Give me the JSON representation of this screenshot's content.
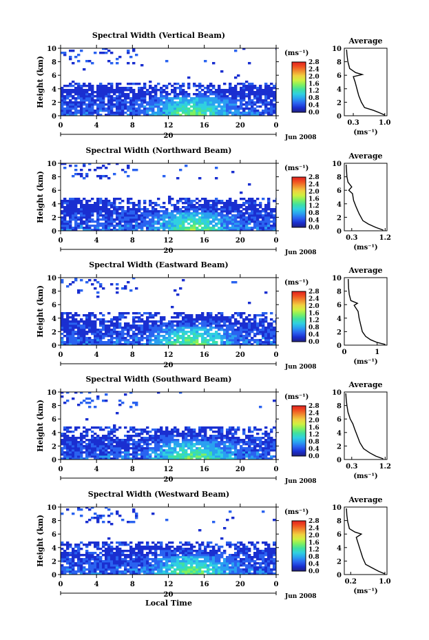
{
  "page": {
    "xlabel": "Local Time",
    "colorbar_unit": "(ms⁻¹)",
    "colorbar_ticks": [
      "0.0",
      "0.4",
      "0.8",
      "1.2",
      "1.6",
      "2.0",
      "2.4",
      "2.8"
    ],
    "date_label": "20",
    "month_label": "Jun 2008",
    "avg_xlabel": "(ms⁻¹)"
  },
  "palette": [
    "#202080",
    "#1a2fd0",
    "#2a63f0",
    "#2aa0f0",
    "#30d0e0",
    "#40e0a0",
    "#80f060",
    "#d0f040",
    "#f0d040",
    "#f09030",
    "#f05020",
    "#e02020"
  ],
  "chart_data": [
    {
      "type": "heatmap",
      "title": "Spectral Width (Vertical Beam)",
      "ylabel": "Height (km)",
      "x_ticks": [
        "0",
        "4",
        "8",
        "12",
        "16",
        "20",
        "0"
      ],
      "xlim": [
        0,
        24
      ],
      "y_ticks": [
        "0",
        "2",
        "4",
        "6",
        "8",
        "10"
      ],
      "ylim": [
        0,
        10
      ],
      "clim": [
        0,
        2.8
      ],
      "average_profile": {
        "title": "Average",
        "x_ticks": [
          "0.3",
          "1.0"
        ],
        "xlim": [
          0.1,
          1.05
        ],
        "y_ticks": [
          "0",
          "2",
          "4",
          "6",
          "8",
          "10"
        ],
        "ylim": [
          0,
          10
        ],
        "points": [
          [
            1.0,
            0.1
          ],
          [
            0.9,
            0.4
          ],
          [
            0.75,
            0.8
          ],
          [
            0.55,
            1.2
          ],
          [
            0.48,
            2.0
          ],
          [
            0.42,
            3.0
          ],
          [
            0.38,
            4.0
          ],
          [
            0.34,
            5.0
          ],
          [
            0.3,
            5.8
          ],
          [
            0.5,
            6.1
          ],
          [
            0.35,
            6.4
          ],
          [
            0.22,
            7.0
          ],
          [
            0.18,
            8.0
          ],
          [
            0.16,
            9.0
          ],
          [
            0.15,
            9.8
          ]
        ]
      }
    },
    {
      "type": "heatmap",
      "title": "Spectral Width (Northward Beam)",
      "ylabel": "Height (km)",
      "x_ticks": [
        "0",
        "4",
        "8",
        "12",
        "16",
        "20",
        "0"
      ],
      "xlim": [
        0,
        24
      ],
      "y_ticks": [
        "0",
        "2",
        "4",
        "6",
        "8",
        "10"
      ],
      "ylim": [
        0,
        10
      ],
      "clim": [
        0,
        2.8
      ],
      "average_profile": {
        "title": "Average",
        "x_ticks": [
          "0.3",
          "1.2"
        ],
        "xlim": [
          0.1,
          1.25
        ],
        "y_ticks": [
          "0",
          "2",
          "4",
          "6",
          "8",
          "10"
        ],
        "ylim": [
          0,
          10
        ],
        "points": [
          [
            1.15,
            0.1
          ],
          [
            0.95,
            0.5
          ],
          [
            0.75,
            1.0
          ],
          [
            0.6,
            1.5
          ],
          [
            0.5,
            2.5
          ],
          [
            0.42,
            3.5
          ],
          [
            0.35,
            4.5
          ],
          [
            0.32,
            5.5
          ],
          [
            0.22,
            6.0
          ],
          [
            0.3,
            6.5
          ],
          [
            0.2,
            7.2
          ],
          [
            0.17,
            8.0
          ],
          [
            0.16,
            9.0
          ],
          [
            0.15,
            9.8
          ]
        ]
      }
    },
    {
      "type": "heatmap",
      "title": "Spectral Width (Eastward Beam)",
      "ylabel": "Height (km)",
      "x_ticks": [
        "0",
        "4",
        "8",
        "12",
        "16",
        "20",
        "0"
      ],
      "xlim": [
        0,
        24
      ],
      "y_ticks": [
        "0",
        "2",
        "4",
        "6",
        "8",
        "10"
      ],
      "ylim": [
        0,
        10
      ],
      "clim": [
        0,
        2.8
      ],
      "average_profile": {
        "title": "Average",
        "x_ticks": [
          "0",
          "1"
        ],
        "xlim": [
          0,
          1.3
        ],
        "y_ticks": [
          "0",
          "2",
          "4",
          "6",
          "8",
          "10"
        ],
        "ylim": [
          0,
          10
        ],
        "points": [
          [
            1.25,
            0.1
          ],
          [
            1.0,
            0.4
          ],
          [
            0.8,
            0.8
          ],
          [
            0.65,
            1.3
          ],
          [
            0.55,
            2.0
          ],
          [
            0.5,
            3.0
          ],
          [
            0.45,
            4.0
          ],
          [
            0.42,
            5.0
          ],
          [
            0.3,
            5.9
          ],
          [
            0.4,
            6.2
          ],
          [
            0.2,
            6.6
          ],
          [
            0.15,
            7.5
          ],
          [
            0.13,
            8.5
          ],
          [
            0.12,
            9.8
          ]
        ]
      }
    },
    {
      "type": "heatmap",
      "title": "Spectral Width (Southward Beam)",
      "ylabel": "Height (km)",
      "x_ticks": [
        "0",
        "4",
        "8",
        "12",
        "16",
        "20",
        "0"
      ],
      "xlim": [
        0,
        24
      ],
      "y_ticks": [
        "0",
        "2",
        "4",
        "6",
        "8",
        "10"
      ],
      "ylim": [
        0,
        10
      ],
      "clim": [
        0,
        2.8
      ],
      "average_profile": {
        "title": "Average",
        "x_ticks": [
          "0.3",
          "1.2"
        ],
        "xlim": [
          0.1,
          1.25
        ],
        "y_ticks": [
          "0",
          "2",
          "4",
          "6",
          "8",
          "10"
        ],
        "ylim": [
          0,
          10
        ],
        "points": [
          [
            1.15,
            0.1
          ],
          [
            0.95,
            0.5
          ],
          [
            0.78,
            1.0
          ],
          [
            0.62,
            1.6
          ],
          [
            0.52,
            2.5
          ],
          [
            0.45,
            3.5
          ],
          [
            0.38,
            4.5
          ],
          [
            0.33,
            5.3
          ],
          [
            0.26,
            6.0
          ],
          [
            0.2,
            7.0
          ],
          [
            0.17,
            8.0
          ],
          [
            0.15,
            9.0
          ],
          [
            0.14,
            9.8
          ]
        ]
      }
    },
    {
      "type": "heatmap",
      "title": "Spectral Width (Westward Beam)",
      "ylabel": "Height (km)",
      "x_ticks": [
        "0",
        "4",
        "8",
        "12",
        "16",
        "20",
        "0"
      ],
      "xlim": [
        0,
        24
      ],
      "y_ticks": [
        "0",
        "2",
        "4",
        "6",
        "8",
        "10"
      ],
      "ylim": [
        0,
        10
      ],
      "clim": [
        0,
        2.8
      ],
      "average_profile": {
        "title": "Average",
        "x_ticks": [
          "0.2",
          "1.0"
        ],
        "xlim": [
          0.05,
          1.05
        ],
        "y_ticks": [
          "0",
          "2",
          "4",
          "6",
          "8",
          "10"
        ],
        "ylim": [
          0,
          10
        ],
        "points": [
          [
            1.0,
            0.1
          ],
          [
            0.85,
            0.5
          ],
          [
            0.7,
            1.0
          ],
          [
            0.55,
            1.5
          ],
          [
            0.48,
            2.5
          ],
          [
            0.43,
            3.5
          ],
          [
            0.38,
            4.5
          ],
          [
            0.33,
            5.5
          ],
          [
            0.45,
            6.0
          ],
          [
            0.3,
            6.3
          ],
          [
            0.17,
            6.8
          ],
          [
            0.13,
            7.8
          ],
          [
            0.11,
            8.8
          ],
          [
            0.1,
            9.8
          ]
        ]
      }
    }
  ]
}
